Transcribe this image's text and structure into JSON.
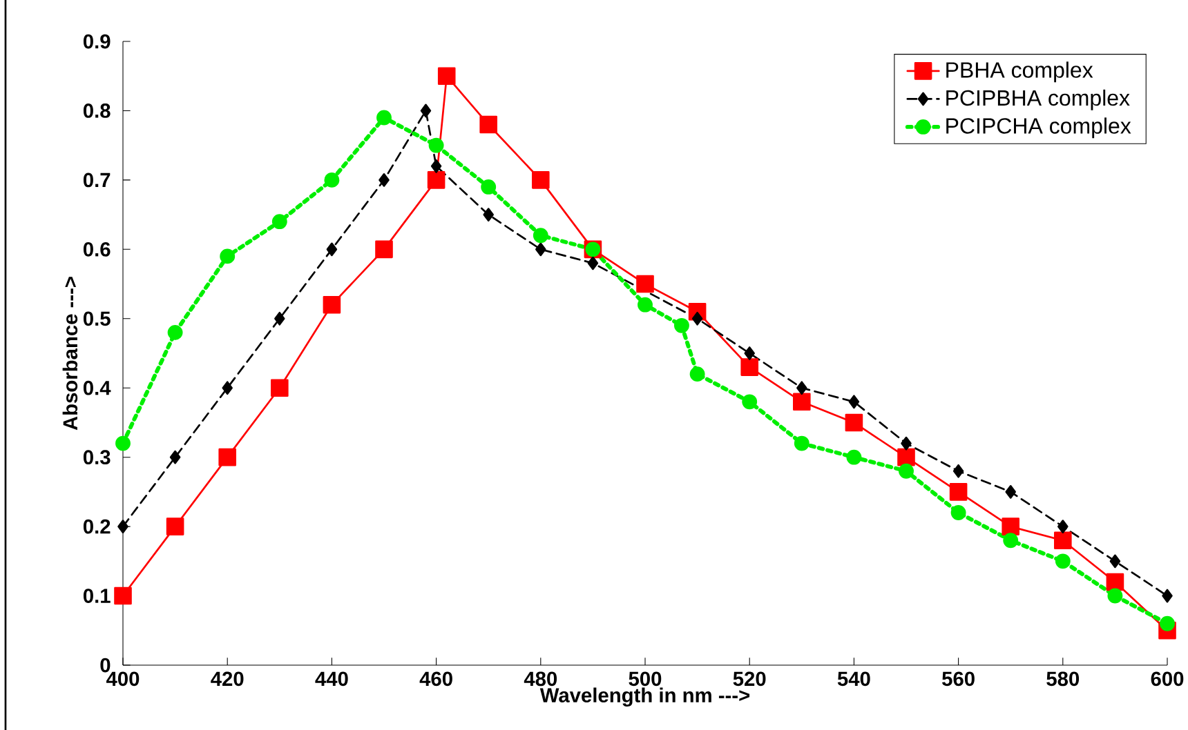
{
  "chart_data": {
    "type": "line",
    "xlabel": "Wavelength in nm --->",
    "ylabel": "Absorbance --->",
    "xlim": [
      400,
      600
    ],
    "ylim": [
      0,
      0.9
    ],
    "xticks": [
      400,
      420,
      440,
      460,
      480,
      500,
      520,
      540,
      560,
      580,
      600
    ],
    "yticks": [
      0,
      0.1,
      0.2,
      0.3,
      0.4,
      0.5,
      0.6,
      0.7,
      0.8,
      0.9
    ],
    "legend": "top right",
    "grid": false,
    "series": [
      {
        "name": "PBHA complex",
        "color": "#ff0000",
        "marker": "square",
        "line_style": "solid",
        "x": [
          400,
          410,
          420,
          430,
          440,
          450,
          460,
          462,
          470,
          480,
          490,
          500,
          510,
          520,
          530,
          540,
          550,
          560,
          570,
          580,
          590,
          600
        ],
        "values": [
          0.1,
          0.2,
          0.3,
          0.4,
          0.52,
          0.6,
          0.7,
          0.85,
          0.78,
          0.7,
          0.6,
          0.55,
          0.51,
          0.43,
          0.38,
          0.35,
          0.3,
          0.25,
          0.2,
          0.18,
          0.12,
          0.05
        ]
      },
      {
        "name": "PCIPBHA complex",
        "color": "#000000",
        "marker": "diamond",
        "line_style": "dashed",
        "x": [
          400,
          410,
          420,
          430,
          440,
          450,
          458,
          460,
          470,
          480,
          490,
          510,
          520,
          530,
          540,
          550,
          560,
          570,
          580,
          590,
          600
        ],
        "values": [
          0.2,
          0.3,
          0.4,
          0.5,
          0.6,
          0.7,
          0.8,
          0.72,
          0.65,
          0.6,
          0.58,
          0.5,
          0.45,
          0.4,
          0.38,
          0.32,
          0.28,
          0.25,
          0.2,
          0.15,
          0.1
        ]
      },
      {
        "name": "PCIPCHA complex",
        "color": "#00ee00",
        "marker": "circle",
        "line_style": "dotted",
        "x": [
          400,
          410,
          420,
          430,
          440,
          450,
          460,
          470,
          480,
          490,
          500,
          507,
          510,
          520,
          530,
          540,
          550,
          560,
          570,
          580,
          590,
          600
        ],
        "values": [
          0.32,
          0.48,
          0.59,
          0.64,
          0.7,
          0.79,
          0.75,
          0.69,
          0.62,
          0.6,
          0.52,
          0.49,
          0.42,
          0.38,
          0.32,
          0.3,
          0.28,
          0.22,
          0.18,
          0.15,
          0.1,
          0.06
        ]
      }
    ]
  }
}
